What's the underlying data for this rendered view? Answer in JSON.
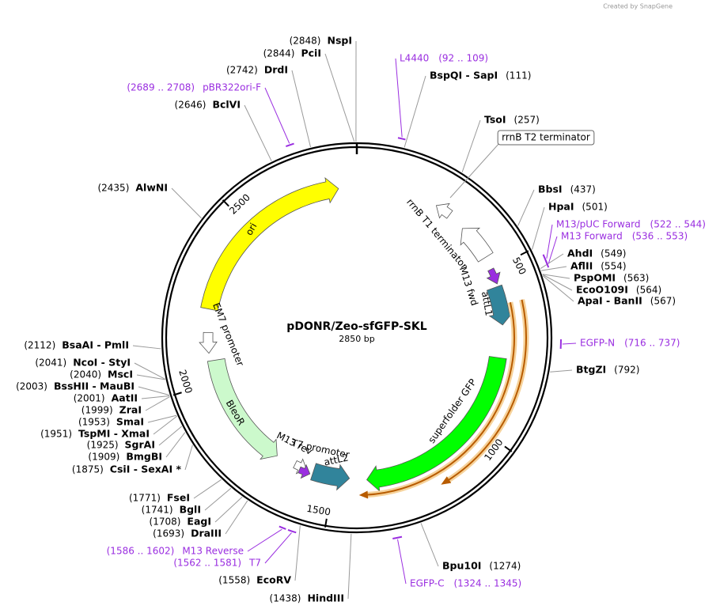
{
  "credit": "Created by SnapGene",
  "map": {
    "name": "pDONR/Zeo-sfGFP-SKL",
    "length": {
      "value": 2850,
      "label": "2850 bp"
    },
    "ticks": [
      500,
      1000,
      1500,
      2000,
      2500
    ]
  },
  "sites": [
    {
      "name": "NspI",
      "position": {
        "value": 2848,
        "label": "(2848)"
      }
    },
    {
      "name": "PciI",
      "position": {
        "value": 2844,
        "label": "(2844)"
      }
    },
    {
      "name": "DrdI",
      "position": {
        "value": 2742,
        "label": "(2742)"
      }
    },
    {
      "name": "BclVI",
      "position": {
        "value": 2646,
        "label": "(2646)"
      }
    },
    {
      "name": "AlwNI",
      "position": {
        "value": 2435,
        "label": "(2435)"
      }
    },
    {
      "name": "BspQI  - SapI",
      "position": {
        "value": 111,
        "label": "(111)"
      }
    },
    {
      "name": "TsoI",
      "position": {
        "value": 257,
        "label": "(257)"
      }
    },
    {
      "name": "BbsI",
      "position": {
        "value": 437,
        "label": "(437)"
      }
    },
    {
      "name": "HpaI",
      "position": {
        "value": 501,
        "label": "(501)"
      }
    },
    {
      "name": "AhdI",
      "position": {
        "value": 549,
        "label": "(549)"
      }
    },
    {
      "name": "AflII",
      "position": {
        "value": 554,
        "label": "(554)"
      }
    },
    {
      "name": "PspOMI",
      "position": {
        "value": 563,
        "label": "(563)"
      }
    },
    {
      "name": "EcoO109I",
      "position": {
        "value": 564,
        "label": "(564)"
      }
    },
    {
      "name": "ApaI  - BanII",
      "position": {
        "value": 567,
        "label": "(567)"
      }
    },
    {
      "name": "BtgZI",
      "position": {
        "value": 792,
        "label": "(792)"
      }
    },
    {
      "name": "Bpu10I",
      "position": {
        "value": 1274,
        "label": "(1274)"
      }
    },
    {
      "name": "HindIII",
      "position": {
        "value": 1438,
        "label": "(1438)"
      }
    },
    {
      "name": "EcoRV",
      "position": {
        "value": 1558,
        "label": "(1558)"
      }
    },
    {
      "name": "DraIII",
      "position": {
        "value": 1693,
        "label": "(1693)"
      }
    },
    {
      "name": "EagI",
      "position": {
        "value": 1708,
        "label": "(1708)"
      }
    },
    {
      "name": "BglI",
      "position": {
        "value": 1741,
        "label": "(1741)"
      }
    },
    {
      "name": "FseI",
      "position": {
        "value": 1771,
        "label": "(1771)"
      }
    },
    {
      "name": "CsiI  - SexAI *",
      "position": {
        "value": 1875,
        "label": "(1875)"
      }
    },
    {
      "name": "BmgBI",
      "position": {
        "value": 1909,
        "label": "(1909)"
      }
    },
    {
      "name": "SgrAI",
      "position": {
        "value": 1925,
        "label": "(1925)"
      }
    },
    {
      "name": "TspMI  - XmaI",
      "position": {
        "value": 1951,
        "label": "(1951)"
      }
    },
    {
      "name": "SmaI",
      "position": {
        "value": 1953,
        "label": "(1953)"
      }
    },
    {
      "name": "ZraI",
      "position": {
        "value": 1999,
        "label": "(1999)"
      }
    },
    {
      "name": "AatII",
      "position": {
        "value": 2001,
        "label": "(2001)"
      }
    },
    {
      "name": "BssHII  - MauBI",
      "position": {
        "value": 2003,
        "label": "(2003)"
      }
    },
    {
      "name": "MscI",
      "position": {
        "value": 2040,
        "label": "(2040)"
      }
    },
    {
      "name": "NcoI  - StyI",
      "position": {
        "value": 2041,
        "label": "(2041)"
      }
    },
    {
      "name": "BsaAI  - PmlI",
      "position": {
        "value": 2112,
        "label": "(2112)"
      }
    }
  ],
  "primers": [
    {
      "name": "L4440",
      "range": {
        "start": 92,
        "end": 109,
        "label": "(92 .. 109)"
      }
    },
    {
      "name": "pBR322ori-F",
      "range": {
        "start": 2689,
        "end": 2708,
        "label": "(2689 .. 2708)"
      }
    },
    {
      "name": "M13/pUC Forward",
      "range": {
        "start": 522,
        "end": 544,
        "label": "(522 .. 544)"
      }
    },
    {
      "name": "M13 Forward",
      "range": {
        "start": 536,
        "end": 553,
        "label": "(536 .. 553)"
      }
    },
    {
      "name": "EGFP-N",
      "range": {
        "start": 716,
        "end": 737,
        "label": "(716 .. 737)"
      }
    },
    {
      "name": "EGFP-C",
      "range": {
        "start": 1324,
        "end": 1345,
        "label": "(1324 .. 1345)"
      }
    },
    {
      "name": "M13 Reverse",
      "range": {
        "start": 1586,
        "end": 1602,
        "label": "(1586 .. 1602)"
      }
    },
    {
      "name": "T7",
      "range": {
        "start": 1562,
        "end": 1581,
        "label": "(1562 .. 1581)"
      }
    }
  ],
  "features": [
    {
      "name": "ori"
    },
    {
      "name": "EM7 promoter"
    },
    {
      "name": "BleoR"
    },
    {
      "name": "T7 promoter"
    },
    {
      "name": "M13 rev"
    },
    {
      "name": "attL2"
    },
    {
      "name": "superfolder GFP"
    },
    {
      "name": "attL1"
    },
    {
      "name": "M13 fwd"
    },
    {
      "name": "rrnB T1 terminator"
    },
    {
      "name": "rrnB T2 terminator"
    }
  ]
}
